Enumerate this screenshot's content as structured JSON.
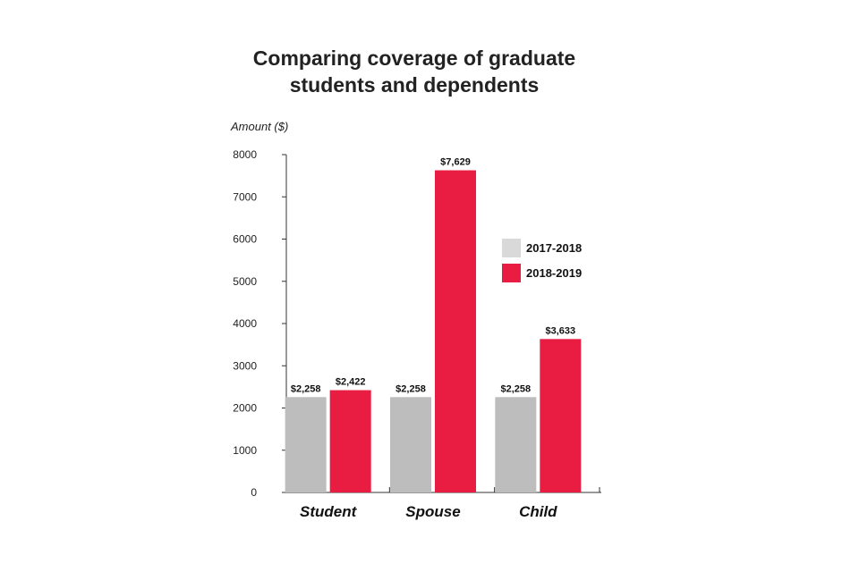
{
  "chart_data": {
    "type": "bar",
    "title": [
      "Comparing coverage of graduate",
      "students and dependents"
    ],
    "ylabel": "Amount ($)",
    "xlabel": "",
    "ylim": [
      0,
      8000
    ],
    "yticks": [
      "0",
      "1000",
      "2000",
      "3000",
      "4000",
      "5000",
      "6000",
      "7000",
      "8000"
    ],
    "categories": [
      "Student",
      "Spouse",
      "Child"
    ],
    "series": [
      {
        "name": "2017-2018",
        "color": "#bdbdbd",
        "values": [
          2258,
          2258,
          2258
        ],
        "labels": [
          "$2,258",
          "$2,258",
          "$2,258"
        ]
      },
      {
        "name": "2018-2019",
        "color": "#e91c42",
        "values": [
          2422,
          7629,
          3633
        ],
        "labels": [
          "$2,422",
          "$7,629",
          "$3,633"
        ]
      }
    ],
    "legend_position": "right",
    "grid": false
  }
}
